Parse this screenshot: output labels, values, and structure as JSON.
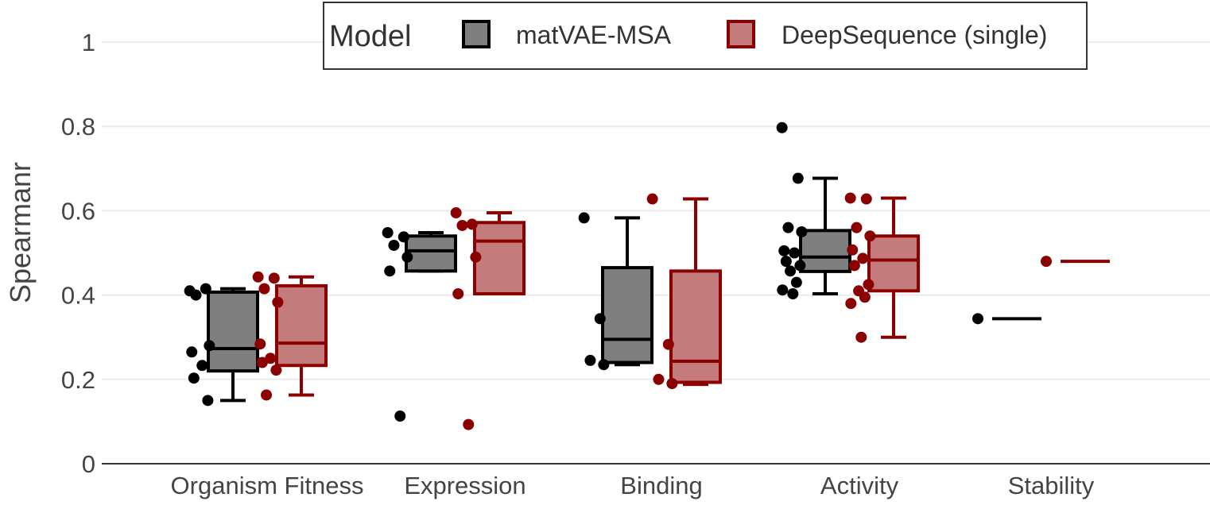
{
  "chart_data": {
    "type": "box",
    "title": "",
    "xlabel": "",
    "ylabel": "Spearmanr",
    "ylim": [
      0,
      1
    ],
    "yticks": [
      {
        "value": 0,
        "label": "0"
      },
      {
        "value": 0.2,
        "label": "0.2"
      },
      {
        "value": 0.4,
        "label": "0.4"
      },
      {
        "value": 0.6,
        "label": "0.6"
      },
      {
        "value": 0.8,
        "label": "0.8"
      },
      {
        "value": 1,
        "label": "1"
      }
    ],
    "grid": true,
    "categories": [
      "Organism Fitness",
      "Expression",
      "Binding",
      "Activity",
      "Stability"
    ],
    "legend": {
      "title": "Model",
      "position": "top",
      "entries": [
        "matVAE-MSA",
        "DeepSequence (single)"
      ]
    },
    "series": [
      {
        "name": "matVAE-MSA",
        "color": "#000000",
        "fill": "#7f7f7f",
        "boxes": [
          {
            "category": "Organism Fitness",
            "q1": 0.22,
            "median": 0.273,
            "q3": 0.407,
            "whisker_low": 0.15,
            "whisker_high": 0.415
          },
          {
            "category": "Expression",
            "q1": 0.457,
            "median": 0.505,
            "q3": 0.54,
            "whisker_low": 0.457,
            "whisker_high": 0.548
          },
          {
            "category": "Binding",
            "q1": 0.24,
            "median": 0.295,
            "q3": 0.465,
            "whisker_low": 0.235,
            "whisker_high": 0.583
          },
          {
            "category": "Activity",
            "q1": 0.456,
            "median": 0.49,
            "q3": 0.553,
            "whisker_low": 0.403,
            "whisker_high": 0.677
          },
          {
            "category": "Stability",
            "q1": 0.344,
            "median": 0.344,
            "q3": 0.344,
            "whisker_low": 0.344,
            "whisker_high": 0.344
          }
        ],
        "points": [
          {
            "category": "Organism Fitness",
            "values": [
              0.41,
              0.415,
              0.4,
              0.28,
              0.265,
              0.233,
              0.203,
              0.15
            ]
          },
          {
            "category": "Expression",
            "values": [
              0.548,
              0.538,
              0.518,
              0.49,
              0.457,
              0.113
            ]
          },
          {
            "category": "Binding",
            "values": [
              0.583,
              0.344,
              0.245,
              0.235
            ]
          },
          {
            "category": "Activity",
            "values": [
              0.797,
              0.677,
              0.56,
              0.55,
              0.505,
              0.5,
              0.48,
              0.47,
              0.457,
              0.43,
              0.412,
              0.403
            ]
          },
          {
            "category": "Stability",
            "values": [
              0.344
            ]
          }
        ]
      },
      {
        "name": "DeepSequence (single)",
        "color": "#8b0000",
        "fill": "#c47b7b",
        "boxes": [
          {
            "category": "Organism Fitness",
            "q1": 0.233,
            "median": 0.286,
            "q3": 0.422,
            "whisker_low": 0.163,
            "whisker_high": 0.443
          },
          {
            "category": "Expression",
            "q1": 0.403,
            "median": 0.528,
            "q3": 0.572,
            "whisker_low": 0.403,
            "whisker_high": 0.595
          },
          {
            "category": "Binding",
            "q1": 0.193,
            "median": 0.243,
            "q3": 0.457,
            "whisker_low": 0.188,
            "whisker_high": 0.628
          },
          {
            "category": "Activity",
            "q1": 0.41,
            "median": 0.483,
            "q3": 0.54,
            "whisker_low": 0.3,
            "whisker_high": 0.63
          },
          {
            "category": "Stability",
            "q1": 0.48,
            "median": 0.48,
            "q3": 0.48,
            "whisker_low": 0.48,
            "whisker_high": 0.48
          }
        ],
        "points": [
          {
            "category": "Organism Fitness",
            "values": [
              0.443,
              0.44,
              0.415,
              0.383,
              0.284,
              0.25,
              0.24,
              0.222,
              0.163
            ]
          },
          {
            "category": "Expression",
            "values": [
              0.595,
              0.568,
              0.565,
              0.49,
              0.403,
              0.093
            ]
          },
          {
            "category": "Binding",
            "values": [
              0.628,
              0.283,
              0.2,
              0.19
            ]
          },
          {
            "category": "Activity",
            "values": [
              0.63,
              0.628,
              0.56,
              0.54,
              0.507,
              0.487,
              0.47,
              0.425,
              0.41,
              0.395,
              0.38,
              0.3
            ]
          },
          {
            "category": "Stability",
            "values": [
              0.48
            ]
          }
        ]
      }
    ]
  }
}
